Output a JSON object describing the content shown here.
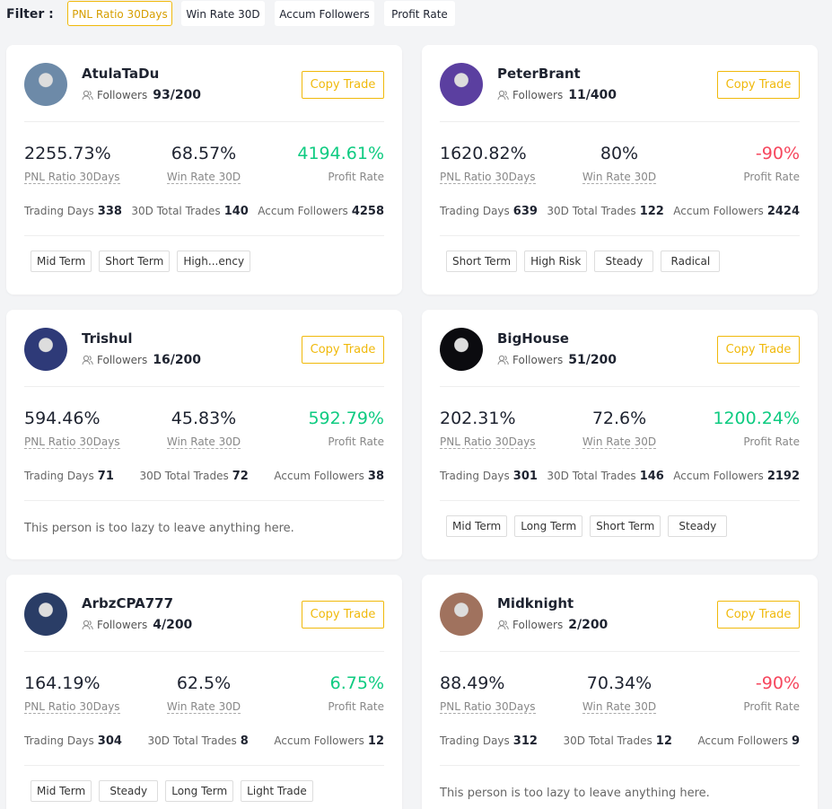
{
  "filter": {
    "label": "Filter :",
    "options": [
      "PNL Ratio 30Days",
      "Win Rate 30D",
      "Accum Followers",
      "Profit Rate"
    ],
    "active": 0
  },
  "traders": [
    {
      "name": "AtulaTaDu",
      "followers_label": "Followers",
      "followers": "93/200",
      "button": "Copy Trade",
      "stats": [
        {
          "value": "2255.73%",
          "label": "PNL Ratio 30Days"
        },
        {
          "value": "68.57%",
          "label": "Win Rate 30D"
        },
        {
          "value": "4194.61%",
          "label": "Profit Rate"
        }
      ],
      "counts": [
        {
          "label": "Trading Days",
          "value": "338"
        },
        {
          "label": "30D Total Trades",
          "value": "140"
        },
        {
          "label": "Accum Followers",
          "value": "4258"
        }
      ],
      "tags": [
        "Mid Term",
        "Short Term",
        "High...ency"
      ]
    },
    {
      "name": "PeterBrant",
      "followers_label": "Followers",
      "followers": "11/400",
      "button": "Copy Trade",
      "stats": [
        {
          "value": "1620.82%",
          "label": "PNL Ratio 30Days"
        },
        {
          "value": "80%",
          "label": "Win Rate 30D"
        },
        {
          "value": "-90%",
          "label": "Profit Rate"
        }
      ],
      "counts": [
        {
          "label": "Trading Days",
          "value": "639"
        },
        {
          "label": "30D Total Trades",
          "value": "122"
        },
        {
          "label": "Accum Followers",
          "value": "2424"
        }
      ],
      "tags": [
        "Short Term",
        "High Risk",
        "Steady",
        "Radical"
      ]
    },
    {
      "name": "Trishul",
      "followers_label": "Followers",
      "followers": "16/200",
      "button": "Copy Trade",
      "stats": [
        {
          "value": "594.46%",
          "label": "PNL Ratio 30Days"
        },
        {
          "value": "45.83%",
          "label": "Win Rate 30D"
        },
        {
          "value": "592.79%",
          "label": "Profit Rate"
        }
      ],
      "counts": [
        {
          "label": "Trading Days",
          "value": "71"
        },
        {
          "label": "30D Total Trades",
          "value": "72"
        },
        {
          "label": "Accum Followers",
          "value": "38"
        }
      ],
      "bio": "This person is too lazy to leave anything here."
    },
    {
      "name": "BigHouse",
      "followers_label": "Followers",
      "followers": "51/200",
      "button": "Copy Trade",
      "stats": [
        {
          "value": "202.31%",
          "label": "PNL Ratio 30Days"
        },
        {
          "value": "72.6%",
          "label": "Win Rate 30D"
        },
        {
          "value": "1200.24%",
          "label": "Profit Rate"
        }
      ],
      "counts": [
        {
          "label": "Trading Days",
          "value": "301"
        },
        {
          "label": "30D Total Trades",
          "value": "146"
        },
        {
          "label": "Accum Followers",
          "value": "2192"
        }
      ],
      "tags": [
        "Mid Term",
        "Long Term",
        "Short Term",
        "Steady"
      ]
    },
    {
      "name": "ArbzCPA777",
      "followers_label": "Followers",
      "followers": "4/200",
      "button": "Copy Trade",
      "stats": [
        {
          "value": "164.19%",
          "label": "PNL Ratio 30Days"
        },
        {
          "value": "62.5%",
          "label": "Win Rate 30D"
        },
        {
          "value": "6.75%",
          "label": "Profit Rate"
        }
      ],
      "counts": [
        {
          "label": "Trading Days",
          "value": "304"
        },
        {
          "label": "30D Total Trades",
          "value": "8"
        },
        {
          "label": "Accum Followers",
          "value": "12"
        }
      ],
      "tags": [
        "Mid Term",
        "Steady",
        "Long Term",
        "Light Trade"
      ]
    },
    {
      "name": "Midknight",
      "followers_label": "Followers",
      "followers": "2/200",
      "button": "Copy Trade",
      "stats": [
        {
          "value": "88.49%",
          "label": "PNL Ratio 30Days"
        },
        {
          "value": "70.34%",
          "label": "Win Rate 30D"
        },
        {
          "value": "-90%",
          "label": "Profit Rate"
        }
      ],
      "counts": [
        {
          "label": "Trading Days",
          "value": "312"
        },
        {
          "label": "30D Total Trades",
          "value": "12"
        },
        {
          "label": "Accum Followers",
          "value": "9"
        }
      ],
      "bio": "This person is too lazy to leave anything here."
    }
  ]
}
